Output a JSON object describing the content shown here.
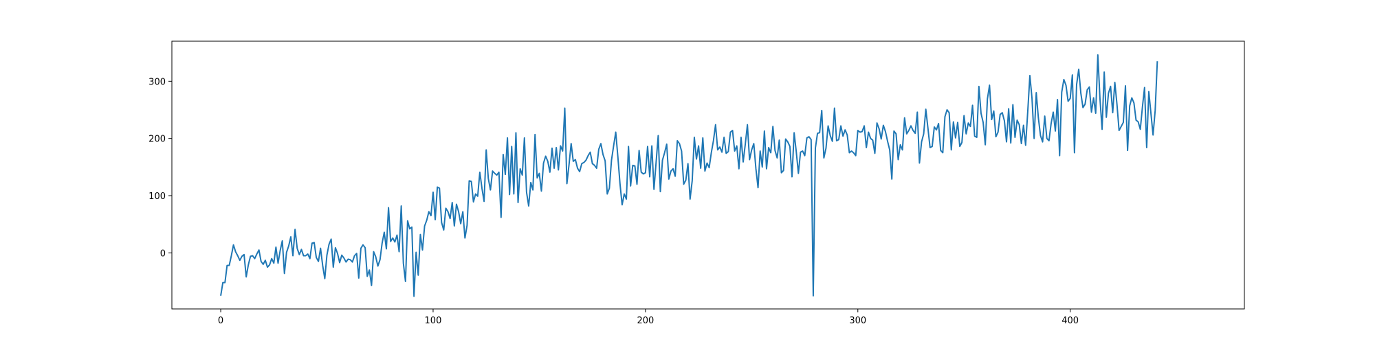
{
  "chart_data": {
    "type": "line",
    "title": "",
    "xlabel": "",
    "ylabel": "",
    "xlim": [
      -23,
      482
    ],
    "ylim": [
      -98,
      370
    ],
    "x_ticks": [
      0,
      100,
      200,
      300,
      400
    ],
    "y_ticks": [
      0,
      100,
      200,
      300
    ],
    "grid": false,
    "line_color": "#1f77b4",
    "x": {
      "start": 0,
      "step": 1
    },
    "series": [
      {
        "values": [
          -75,
          -52,
          -52,
          -22,
          -22,
          -5,
          14,
          2,
          -5,
          -13,
          -6,
          -3,
          -42,
          -21,
          -6,
          -5,
          -10,
          -2,
          5,
          -15,
          -20,
          -13,
          -25,
          -21,
          -10,
          -18,
          10,
          -18,
          4,
          21,
          -36,
          1,
          12,
          28,
          -5,
          41,
          8,
          -3,
          6,
          -5,
          -5,
          -2,
          -10,
          17,
          18,
          -8,
          -15,
          8,
          -22,
          -45,
          -4,
          15,
          24,
          -25,
          9,
          -1,
          -17,
          -4,
          -9,
          -16,
          -11,
          -12,
          -16,
          -5,
          -1,
          -44,
          8,
          14,
          9,
          -41,
          -30,
          -57,
          2,
          -7,
          -23,
          -12,
          17,
          36,
          7,
          79,
          20,
          26,
          19,
          31,
          2,
          82,
          -18,
          -50,
          56,
          42,
          45,
          -76,
          1,
          -39,
          32,
          5,
          47,
          57,
          72,
          65,
          106,
          58,
          115,
          113,
          53,
          40,
          78,
          72,
          60,
          88,
          47,
          85,
          72,
          51,
          72,
          26,
          48,
          126,
          125,
          89,
          103,
          99,
          141,
          113,
          90,
          180,
          130,
          110,
          143,
          139,
          136,
          141,
          62,
          172,
          137,
          201,
          102,
          186,
          103,
          210,
          88,
          147,
          136,
          201,
          106,
          82,
          123,
          110,
          207,
          131,
          139,
          108,
          157,
          169,
          160,
          141,
          183,
          148,
          184,
          145,
          187,
          178,
          253,
          121,
          154,
          191,
          160,
          163,
          148,
          142,
          156,
          158,
          162,
          170,
          176,
          156,
          153,
          148,
          181,
          191,
          172,
          161,
          103,
          113,
          162,
          187,
          211,
          168,
          121,
          84,
          103,
          94,
          186,
          117,
          153,
          152,
          120,
          179,
          141,
          138,
          140,
          186,
          133,
          187,
          111,
          158,
          205,
          107,
          162,
          175,
          190,
          129,
          143,
          147,
          134,
          196,
          191,
          178,
          120,
          127,
          156,
          94,
          126,
          202,
          164,
          187,
          148,
          201,
          143,
          157,
          149,
          175,
          196,
          224,
          180,
          185,
          176,
          202,
          174,
          177,
          211,
          214,
          178,
          187,
          147,
          202,
          159,
          190,
          224,
          163,
          180,
          191,
          147,
          114,
          178,
          150,
          213,
          147,
          184,
          175,
          221,
          179,
          166,
          197,
          140,
          144,
          199,
          194,
          186,
          133,
          210,
          177,
          139,
          176,
          178,
          170,
          201,
          203,
          198,
          -75,
          183,
          209,
          210,
          249,
          166,
          183,
          222,
          205,
          195,
          253,
          196,
          198,
          222,
          204,
          215,
          206,
          175,
          178,
          175,
          170,
          214,
          211,
          212,
          222,
          184,
          211,
          200,
          197,
          174,
          227,
          217,
          199,
          223,
          212,
          195,
          180,
          129,
          213,
          208,
          163,
          189,
          180,
          236,
          208,
          214,
          222,
          214,
          209,
          246,
          157,
          194,
          208,
          251,
          218,
          184,
          186,
          220,
          215,
          226,
          179,
          175,
          238,
          250,
          245,
          180,
          229,
          201,
          228,
          186,
          193,
          240,
          208,
          227,
          221,
          258,
          204,
          202,
          291,
          244,
          228,
          189,
          269,
          293,
          233,
          248,
          203,
          211,
          242,
          245,
          231,
          194,
          252,
          192,
          259,
          202,
          232,
          224,
          191,
          223,
          188,
          247,
          310,
          270,
          200,
          280,
          236,
          205,
          194,
          239,
          200,
          196,
          226,
          246,
          213,
          268,
          170,
          281,
          303,
          293,
          265,
          270,
          311,
          175,
          294,
          321,
          279,
          254,
          260,
          285,
          290,
          246,
          271,
          244,
          346,
          270,
          216,
          316,
          237,
          279,
          291,
          245,
          298,
          260,
          214,
          221,
          228,
          292,
          179,
          257,
          271,
          262,
          232,
          229,
          216,
          255,
          289,
          184,
          282,
          244,
          206,
          249,
          335
        ]
      }
    ]
  }
}
